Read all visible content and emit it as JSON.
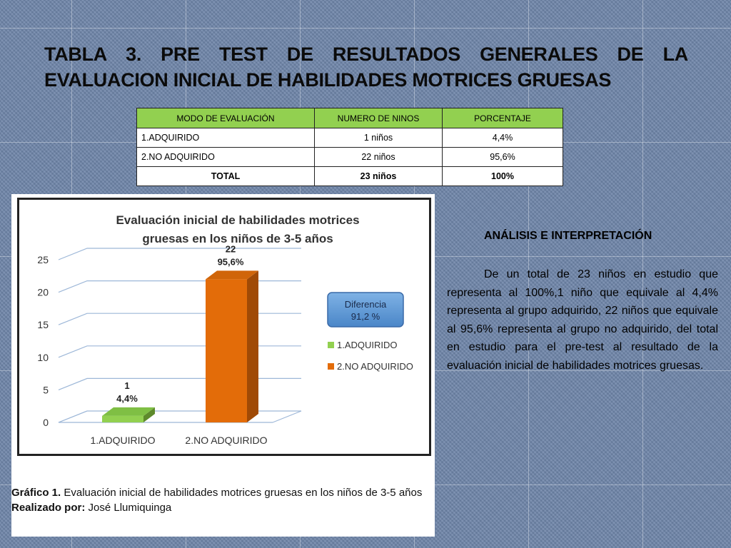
{
  "title": "TABLA 3. PRE TEST DE RESULTADOS GENERALES DE LA EVALUACION INICIAL DE HABILIDADES MOTRICES GRUESAS",
  "table": {
    "headers": [
      "MODO DE EVALUACIÓN",
      "NUMERO DE NINOS",
      "PORCENTAJE"
    ],
    "rows": [
      [
        "1.ADQUIRIDO",
        "1 niños",
        "4,4%"
      ],
      [
        "2.NO ADQUIRIDO",
        "22 niños",
        "95,6%"
      ]
    ],
    "total": [
      "TOTAL",
      "23 niños",
      "100%"
    ]
  },
  "chart_data": {
    "type": "bar",
    "title": "Evaluación inicial de habilidades motrices gruesas en los niños de 3-5 años",
    "title_lines": [
      "Evaluación inicial de habilidades motrices",
      "gruesas en los niños de 3-5 años"
    ],
    "categories": [
      "1.ADQUIRIDO",
      "2.NO ADQUIRIDO"
    ],
    "values": [
      1,
      22
    ],
    "data_labels": [
      [
        "1",
        "4,4%"
      ],
      [
        "22",
        "95,6%"
      ]
    ],
    "colors": [
      "#92d050",
      "#e36c09"
    ],
    "legend": [
      "1.ADQUIRIDO",
      "2.NO ADQUIRIDO"
    ],
    "legend_position": "right",
    "yticks": [
      "0",
      "5",
      "10",
      "15",
      "20",
      "25"
    ],
    "ylim": [
      0,
      25
    ],
    "grid": true,
    "annotation_lines": [
      "Diferencia",
      "91,2 %"
    ]
  },
  "caption": {
    "label": "Gráfico 1.",
    "text": "Evaluación inicial de habilidades motrices gruesas en los niños de 3-5 años",
    "author_label": "Realizado por:",
    "author": "José  Llumiquinga"
  },
  "analysis": {
    "heading": "ANÁLISIS E INTERPRETACIÓN",
    "body": "De un total de 23 niños en estudio que representa al 100%,1 niño que equivale al 4,4% representa al grupo adquirido, 22 niños que equivale al 95,6% representa al grupo no adquirido, del total en estudio para el pre-test al resultado de la evaluación inicial de habilidades motrices gruesas."
  }
}
